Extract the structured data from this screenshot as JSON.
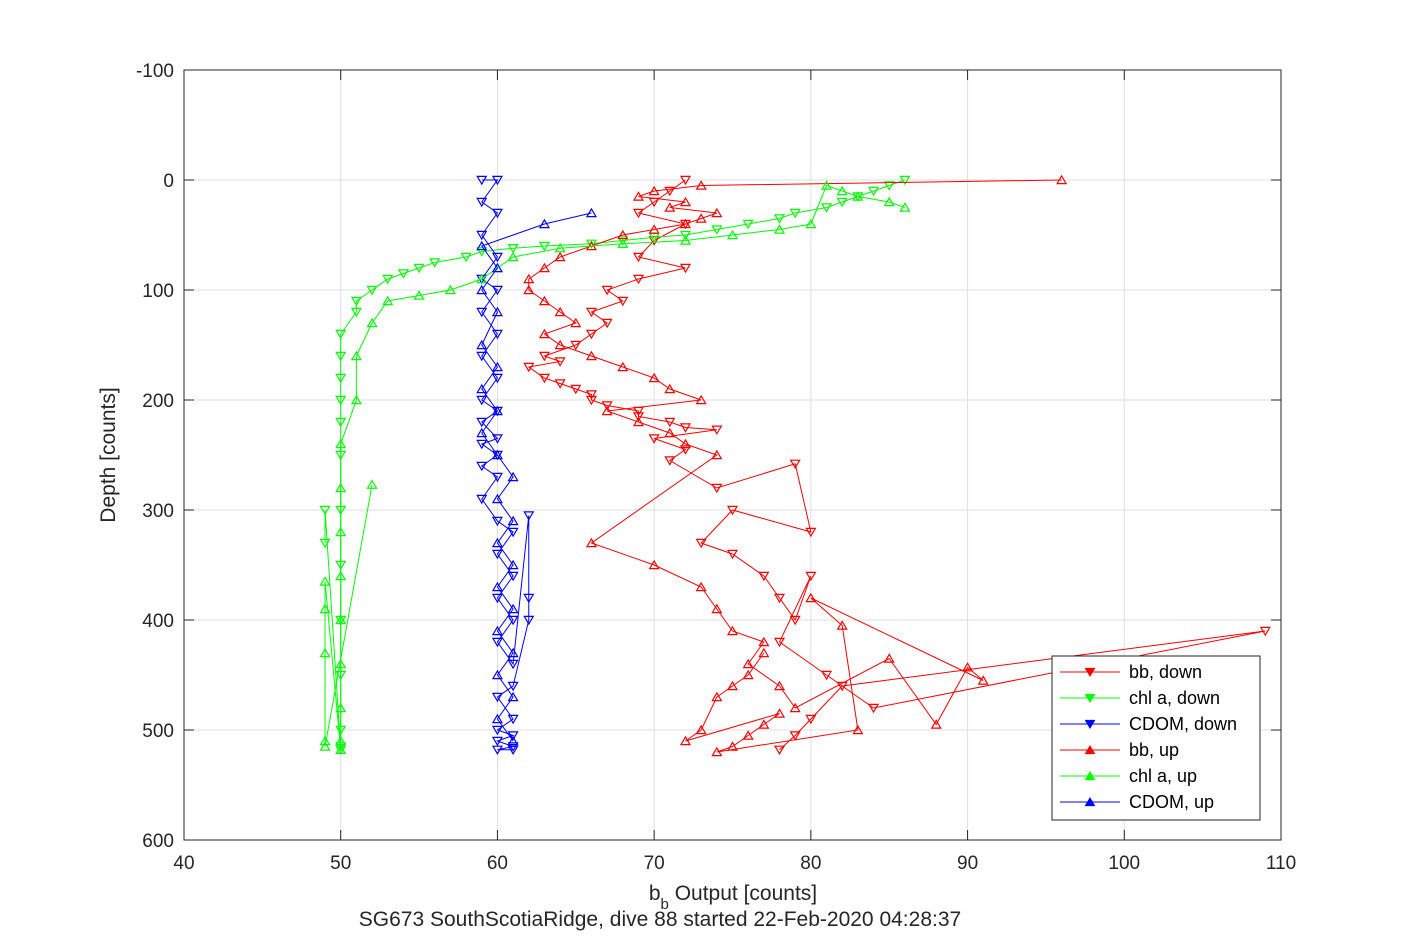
{
  "chart_data": {
    "type": "line",
    "title": "",
    "xlabel": "b_b Output [counts]",
    "xlabel_main": "b",
    "xlabel_sub": "b",
    "xlabel_rest": " Output [counts]",
    "ylabel": "Depth [counts]",
    "caption": "SG673 SouthScotiaRidge, dive 88 started 22-Feb-2020 04:28:37",
    "xlim": [
      40,
      110
    ],
    "ylim": [
      -100,
      600
    ],
    "y_reversed": true,
    "grid": true,
    "x_ticks": [
      40,
      50,
      60,
      70,
      80,
      90,
      100,
      110
    ],
    "y_ticks": [
      -100,
      0,
      100,
      200,
      300,
      400,
      500,
      600
    ],
    "legend_position": "bottom-right",
    "series": [
      {
        "name": "bb, down",
        "color": "#ff0000",
        "marker": "triangle-down",
        "x": [
          72,
          71,
          70,
          69,
          72,
          70,
          69,
          72,
          69,
          67,
          68,
          66,
          67,
          66,
          65,
          63,
          64,
          62,
          63,
          64,
          65,
          66,
          66,
          67,
          69,
          69,
          71,
          72,
          74,
          70,
          72,
          71,
          74,
          79,
          80,
          75,
          73,
          75,
          77,
          78,
          79,
          80,
          78,
          81,
          84,
          109,
          82,
          80,
          79,
          78
        ],
        "y": [
          0,
          10,
          20,
          30,
          40,
          55,
          70,
          80,
          90,
          100,
          110,
          120,
          130,
          140,
          150,
          160,
          165,
          170,
          180,
          185,
          190,
          195,
          200,
          205,
          210,
          215,
          220,
          225,
          227,
          235,
          245,
          255,
          280,
          258,
          320,
          300,
          330,
          340,
          360,
          380,
          400,
          360,
          420,
          450,
          480,
          410,
          460,
          490,
          505,
          518
        ]
      },
      {
        "name": "chl a, down",
        "color": "#00ff00",
        "marker": "triangle-down",
        "x": [
          86,
          85,
          84,
          83,
          82,
          81,
          79,
          78,
          76,
          74,
          72,
          70,
          68,
          66,
          63,
          61,
          59,
          58,
          56,
          55,
          54,
          53,
          52,
          51,
          51,
          50,
          50,
          50,
          50,
          50,
          50,
          50,
          50,
          50,
          50,
          50,
          50,
          50,
          49,
          49
        ],
        "y": [
          0,
          5,
          10,
          15,
          20,
          25,
          30,
          35,
          40,
          45,
          50,
          52,
          55,
          58,
          60,
          62,
          65,
          70,
          75,
          80,
          85,
          90,
          100,
          110,
          120,
          140,
          160,
          180,
          200,
          220,
          250,
          300,
          350,
          400,
          450,
          500,
          515,
          518,
          300,
          330
        ]
      },
      {
        "name": "CDOM, down",
        "color": "#0000ff",
        "marker": "triangle-down",
        "x": [
          59,
          60,
          59,
          60,
          59,
          60,
          59,
          60,
          59,
          60,
          59,
          60,
          59,
          60,
          59,
          60,
          59,
          60,
          59,
          60,
          59,
          60,
          61,
          60,
          61,
          60,
          61,
          60,
          61,
          62,
          62,
          62,
          61,
          60,
          61,
          60,
          61,
          60,
          61,
          60,
          61
        ],
        "y": [
          0,
          0,
          20,
          30,
          50,
          70,
          90,
          100,
          120,
          140,
          160,
          180,
          200,
          210,
          220,
          235,
          240,
          250,
          260,
          270,
          290,
          310,
          320,
          340,
          360,
          380,
          400,
          420,
          440,
          305,
          380,
          400,
          460,
          470,
          490,
          500,
          505,
          510,
          515,
          518,
          518
        ]
      },
      {
        "name": "bb, up",
        "color": "#ff0000",
        "marker": "triangle-up",
        "x": [
          96,
          73,
          70,
          69,
          72,
          71,
          74,
          73,
          72,
          70,
          68,
          66,
          64,
          63,
          62,
          62,
          63,
          64,
          65,
          63,
          64,
          66,
          68,
          70,
          71,
          73,
          67,
          69,
          71,
          72,
          74,
          66,
          70,
          73,
          74,
          75,
          77,
          76,
          78,
          79,
          85,
          88,
          90,
          91,
          80,
          82,
          83,
          74,
          75,
          76,
          77,
          78,
          72,
          73,
          74,
          75,
          76,
          77
        ],
        "y": [
          0,
          5,
          10,
          15,
          20,
          25,
          30,
          35,
          40,
          45,
          50,
          60,
          70,
          80,
          90,
          100,
          110,
          120,
          130,
          140,
          150,
          160,
          170,
          180,
          190,
          200,
          210,
          220,
          230,
          240,
          250,
          330,
          350,
          370,
          390,
          410,
          420,
          440,
          460,
          480,
          435,
          495,
          443,
          455,
          380,
          405,
          500,
          520,
          515,
          505,
          495,
          485,
          510,
          500,
          470,
          460,
          450,
          430
        ]
      },
      {
        "name": "chl a, up",
        "color": "#00ff00",
        "marker": "triangle-up",
        "x": [
          86,
          85,
          83,
          82,
          81,
          80,
          78,
          75,
          72,
          68,
          64,
          61,
          60,
          59,
          57,
          55,
          53,
          52,
          51,
          51,
          50,
          50,
          50,
          50,
          50,
          50,
          50,
          50,
          50,
          49,
          49,
          49,
          49,
          49,
          52
        ],
        "y": [
          25,
          20,
          15,
          10,
          5,
          40,
          45,
          50,
          55,
          58,
          62,
          70,
          80,
          90,
          100,
          105,
          110,
          130,
          160,
          200,
          240,
          280,
          320,
          360,
          400,
          440,
          480,
          510,
          518,
          365,
          390,
          430,
          510,
          515,
          277
        ]
      },
      {
        "name": "CDOM, up",
        "color": "#0000ff",
        "marker": "triangle-up",
        "x": [
          66,
          63,
          59,
          60,
          59,
          60,
          59,
          60,
          59,
          60,
          59,
          60,
          61,
          60,
          61,
          60,
          61,
          60,
          61,
          60,
          61,
          60,
          61,
          60,
          61
        ],
        "y": [
          30,
          40,
          60,
          80,
          100,
          120,
          150,
          170,
          190,
          210,
          230,
          250,
          270,
          290,
          310,
          330,
          350,
          370,
          390,
          410,
          430,
          450,
          470,
          490,
          510
        ]
      }
    ]
  }
}
